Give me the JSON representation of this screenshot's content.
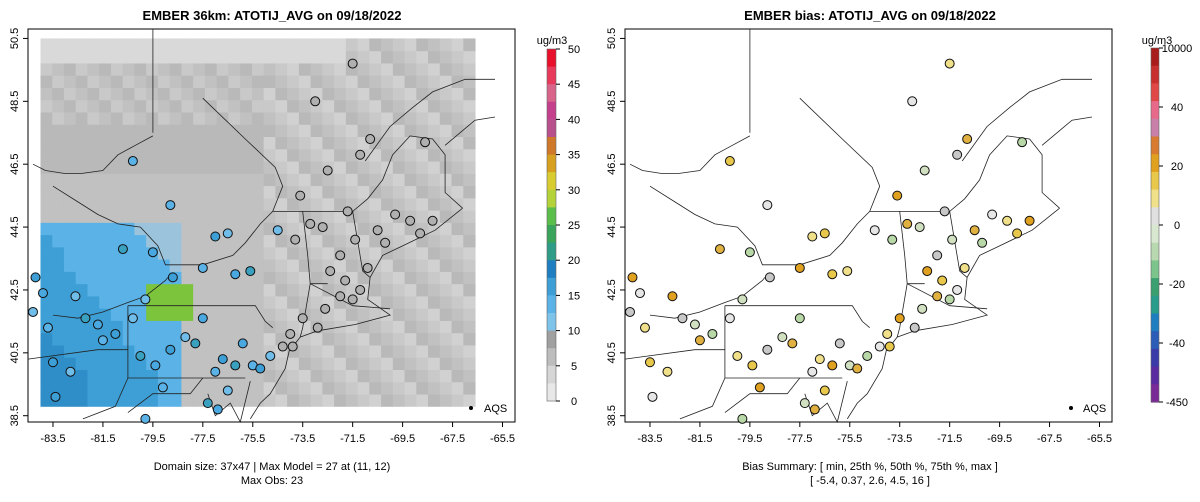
{
  "left_panel": {
    "title": "EMBER 36km: ATOTIJ_AVG on 09/18/2022",
    "footer_line1": "Domain size: 37x47 | Max Model = 27 at (11, 12)",
    "footer_line2": "Max Obs: 23",
    "legend_label": "AQS",
    "colorbar": {
      "unit": "ug/m3",
      "ticks": [
        "50",
        "45",
        "40",
        "35",
        "30",
        "25",
        "20",
        "15",
        "10",
        "5",
        "0"
      ]
    }
  },
  "right_panel": {
    "title": "EMBER bias: ATOTIJ_AVG on 09/18/2022",
    "footer_line1": "Bias Summary: [ min, 25th %, 50th %, 75th %, max ]",
    "footer_line2": "[ -5.4,   0.37,   2.6,   4.5,   16 ]",
    "legend_label": "AQS",
    "colorbar": {
      "unit": "ug/m3",
      "ticks": [
        "10000",
        "40",
        "20",
        "0",
        "-20",
        "-40",
        "-450"
      ]
    }
  },
  "axes": {
    "x_ticks": [
      "-83.5",
      "-81.5",
      "-79.5",
      "-77.5",
      "-75.5",
      "-73.5",
      "-71.5",
      "-69.5",
      "-67.5",
      "-65.5"
    ],
    "y_ticks": [
      "38.5",
      "40.5",
      "42.5",
      "44.5",
      "46.5",
      "48.5",
      "50.5"
    ],
    "lon_range": [
      -84.5,
      -65.0
    ],
    "lat_range": [
      38.3,
      50.8
    ]
  },
  "colors": {
    "grey_low": "#d9d9d9",
    "blue_mid": "#4aa8e0",
    "green_high": "#3aa55a",
    "bias_zero": "#e6e6e6",
    "bias_pos": "#e0a020"
  }
}
